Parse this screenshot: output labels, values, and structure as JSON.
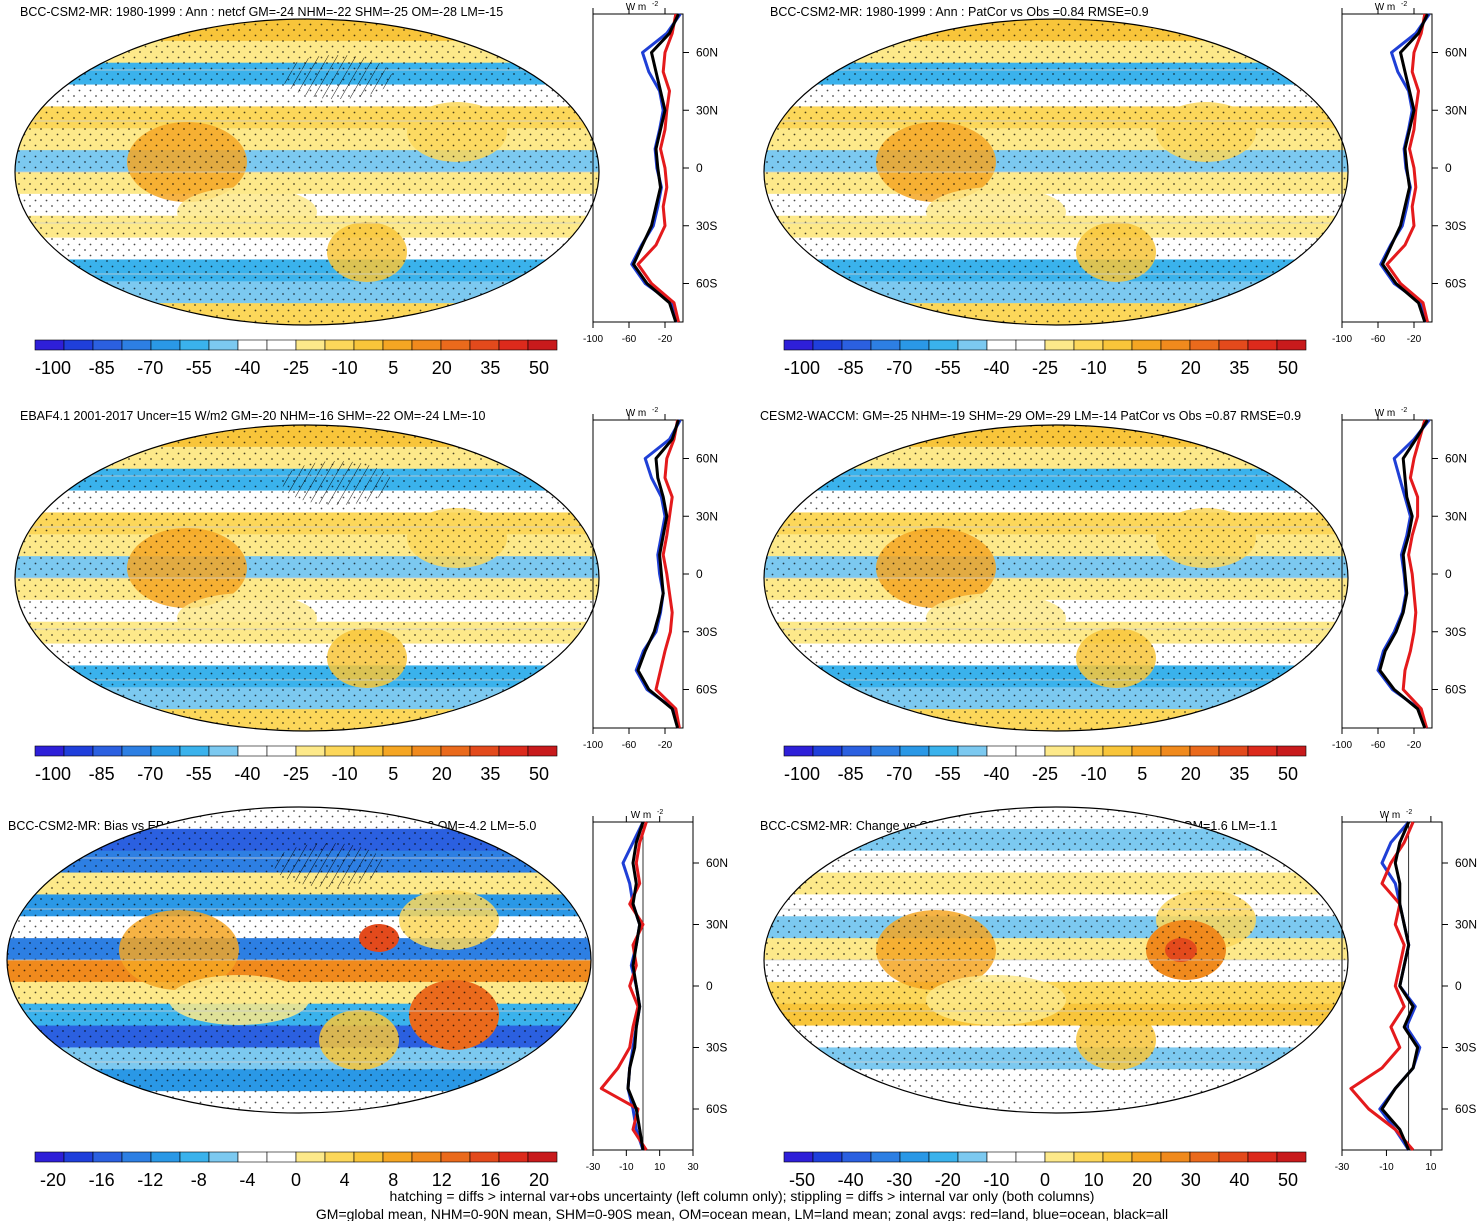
{
  "footnote": {
    "line1": "hatching = diffs > internal var+obs uncertainty (left column only); stippling = diffs > internal var only (both columns)",
    "line2": "GM=global mean, NHM=0-90N mean, SHM=0-90S mean, OM=ocean mean, LM=land mean; zonal avgs: red=land, blue=ocean, black=all"
  },
  "colors": {
    "land": "#e41a1c",
    "ocean": "#1f3fd6",
    "all": "#000000"
  },
  "zonal_unit": "W m",
  "zonal_unit_exp": "-2",
  "lat_labels": [
    "60N",
    "30N",
    "0",
    "30S",
    "60S"
  ],
  "chart_data": [
    {
      "type": "heatmap",
      "panel": "top-left",
      "title": "BCC-CSM2-MR: 1980-1999 : Ann : netcf GM=-24 NHM=-22 SHM=-25 OM=-28 LM=-15",
      "colorbar_ticks": [
        "-100",
        "-85",
        "-70",
        "-55",
        "-40",
        "-25",
        "-10",
        "5",
        "20",
        "35",
        "50"
      ],
      "zonal_ticks": [
        "-100",
        "-60",
        "-20"
      ],
      "zonal_xlim": [
        -100,
        0
      ],
      "hatching": true,
      "zonal_series": {
        "lat": [
          80,
          70,
          60,
          50,
          40,
          30,
          20,
          10,
          0,
          -10,
          -20,
          -30,
          -40,
          -50,
          -60,
          -70,
          -80
        ],
        "all": [
          -5,
          -15,
          -35,
          -30,
          -25,
          -20,
          -25,
          -30,
          -28,
          -25,
          -30,
          -35,
          -45,
          -55,
          -40,
          -15,
          -8
        ],
        "ocean": [
          -3,
          -18,
          -45,
          -38,
          -26,
          -22,
          -26,
          -31,
          -29,
          -24,
          -28,
          -33,
          -46,
          -57,
          -42,
          -12,
          -6
        ],
        "land": [
          -8,
          -12,
          -20,
          -22,
          -15,
          -18,
          -20,
          -25,
          -20,
          -18,
          -22,
          -20,
          -30,
          -50,
          -35,
          -10,
          -5
        ]
      }
    },
    {
      "type": "heatmap",
      "panel": "top-right",
      "title": "BCC-CSM2-MR: 1980-1999 : Ann : PatCor vs Obs =0.84 RMSE=0.9",
      "colorbar_ticks": [
        "-100",
        "-85",
        "-70",
        "-55",
        "-40",
        "-25",
        "-10",
        "5",
        "20",
        "35",
        "50"
      ],
      "zonal_ticks": [
        "-100",
        "-60",
        "-20"
      ],
      "zonal_xlim": [
        -100,
        0
      ],
      "hatching": false,
      "zonal_series": {
        "lat": [
          80,
          70,
          60,
          50,
          40,
          30,
          20,
          10,
          0,
          -10,
          -20,
          -30,
          -40,
          -50,
          -60,
          -70,
          -80
        ],
        "all": [
          -5,
          -15,
          -35,
          -30,
          -25,
          -20,
          -25,
          -30,
          -28,
          -25,
          -30,
          -35,
          -45,
          -55,
          -40,
          -15,
          -8
        ],
        "ocean": [
          -3,
          -18,
          -45,
          -38,
          -26,
          -22,
          -26,
          -31,
          -29,
          -24,
          -28,
          -33,
          -46,
          -57,
          -42,
          -12,
          -6
        ],
        "land": [
          -8,
          -12,
          -20,
          -22,
          -15,
          -18,
          -20,
          -25,
          -20,
          -18,
          -22,
          -20,
          -30,
          -50,
          -35,
          -10,
          -5
        ]
      }
    },
    {
      "type": "heatmap",
      "panel": "middle-left",
      "title": "EBAF4.1 2001-2017 Uncer=15 W/m2 GM=-20 NHM=-16 SHM=-22 OM=-24 LM=-10",
      "colorbar_ticks": [
        "-100",
        "-85",
        "-70",
        "-55",
        "-40",
        "-25",
        "-10",
        "5",
        "20",
        "35",
        "50"
      ],
      "zonal_ticks": [
        "-100",
        "-60",
        "-20"
      ],
      "zonal_xlim": [
        -100,
        0
      ],
      "hatching": true,
      "zonal_series": {
        "lat": [
          80,
          70,
          60,
          50,
          40,
          30,
          20,
          10,
          0,
          -10,
          -20,
          -30,
          -40,
          -50,
          -60,
          -70,
          -80
        ],
        "all": [
          -5,
          -12,
          -30,
          -28,
          -22,
          -18,
          -22,
          -26,
          -24,
          -22,
          -26,
          -32,
          -42,
          -50,
          -38,
          -12,
          -6
        ],
        "ocean": [
          -3,
          -15,
          -42,
          -35,
          -24,
          -20,
          -24,
          -28,
          -26,
          -22,
          -25,
          -30,
          -44,
          -52,
          -40,
          -10,
          -5
        ],
        "land": [
          -6,
          -10,
          -18,
          -20,
          -12,
          -15,
          -18,
          -22,
          -18,
          -15,
          -12,
          -14,
          -20,
          -25,
          -30,
          -8,
          -4
        ]
      }
    },
    {
      "type": "heatmap",
      "panel": "middle-right",
      "title": "CESM2-WACCM: GM=-25 NHM=-19 SHM=-29 OM=-29 LM=-14 PatCor vs Obs =0.87 RMSE=0.9",
      "colorbar_ticks": [
        "-100",
        "-85",
        "-70",
        "-55",
        "-40",
        "-25",
        "-10",
        "5",
        "20",
        "35",
        "50"
      ],
      "zonal_ticks": [
        "-100",
        "-60",
        "-20"
      ],
      "zonal_xlim": [
        -100,
        0
      ],
      "hatching": false,
      "zonal_series": {
        "lat": [
          80,
          70,
          60,
          50,
          40,
          30,
          20,
          10,
          0,
          -10,
          -20,
          -30,
          -40,
          -50,
          -60,
          -70,
          -80
        ],
        "all": [
          -5,
          -18,
          -32,
          -30,
          -28,
          -22,
          -26,
          -32,
          -30,
          -28,
          -32,
          -40,
          -52,
          -58,
          -42,
          -16,
          -8
        ],
        "ocean": [
          -3,
          -20,
          -42,
          -36,
          -30,
          -24,
          -28,
          -34,
          -31,
          -29,
          -33,
          -42,
          -54,
          -60,
          -44,
          -14,
          -6
        ],
        "land": [
          -8,
          -14,
          -20,
          -24,
          -16,
          -16,
          -22,
          -26,
          -22,
          -20,
          -18,
          -20,
          -24,
          -30,
          -32,
          -12,
          -6
        ]
      }
    },
    {
      "type": "heatmap",
      "panel": "bottom-left",
      "title": "BCC-CSM2-MR: Bias vs EBAF4.1 2001-2017 GM=-4.4 NHM=-5.9 SHM=-3.2 OM=-4.2 LM=-5.0",
      "colorbar_ticks": [
        "-20",
        "-16",
        "-12",
        "-8",
        "-4",
        "0",
        "4",
        "8",
        "12",
        "16",
        "20"
      ],
      "zonal_ticks": [
        "-30",
        "-10",
        "10",
        "30"
      ],
      "zonal_xlim": [
        -30,
        30
      ],
      "hatching": true,
      "zonal_series": {
        "lat": [
          80,
          70,
          60,
          50,
          40,
          30,
          20,
          10,
          0,
          -10,
          -20,
          -30,
          -40,
          -50,
          -60,
          -70,
          -80
        ],
        "all": [
          0,
          -4,
          -6,
          -4,
          -6,
          -2,
          -4,
          -6,
          -4,
          -2,
          -4,
          -5,
          -8,
          -9,
          -4,
          -2,
          0
        ],
        "ocean": [
          0,
          -6,
          -12,
          -8,
          -6,
          -2,
          -4,
          -7,
          -4,
          -2,
          -4,
          -6,
          -8,
          -9,
          -6,
          -4,
          0
        ],
        "land": [
          2,
          -2,
          -4,
          -2,
          -8,
          0,
          -6,
          -4,
          -8,
          -3,
          -6,
          -8,
          -15,
          -25,
          -3,
          -6,
          2
        ]
      }
    },
    {
      "type": "heatmap",
      "panel": "bottom-right",
      "title": "BCC-CSM2-MR: Change vs CESM2-WACCM GM=0.8 NHM=-2.9 SHM=3.8 OM=1.6 LM=-1.1",
      "colorbar_ticks": [
        "-50",
        "-40",
        "-30",
        "-20",
        "-10",
        "0",
        "10",
        "20",
        "30",
        "40",
        "50"
      ],
      "zonal_ticks": [
        "-30",
        "-10",
        "10"
      ],
      "zonal_xlim": [
        -30,
        15
      ],
      "hatching": false,
      "zonal_series": {
        "lat": [
          80,
          70,
          60,
          50,
          40,
          30,
          20,
          10,
          0,
          -10,
          -20,
          -30,
          -40,
          -50,
          -60,
          -70,
          -80
        ],
        "all": [
          0,
          -4,
          -6,
          -4,
          -4,
          -2,
          0,
          -2,
          -4,
          2,
          -2,
          4,
          2,
          -6,
          -12,
          -4,
          0
        ],
        "ocean": [
          0,
          -8,
          -12,
          -6,
          -4,
          -2,
          0,
          -2,
          -4,
          3,
          -1,
          5,
          2,
          -6,
          -13,
          -6,
          0
        ],
        "land": [
          2,
          -2,
          -8,
          -12,
          -4,
          -6,
          -2,
          -4,
          -6,
          -2,
          -8,
          -4,
          -12,
          -26,
          -18,
          -6,
          2
        ]
      }
    }
  ]
}
